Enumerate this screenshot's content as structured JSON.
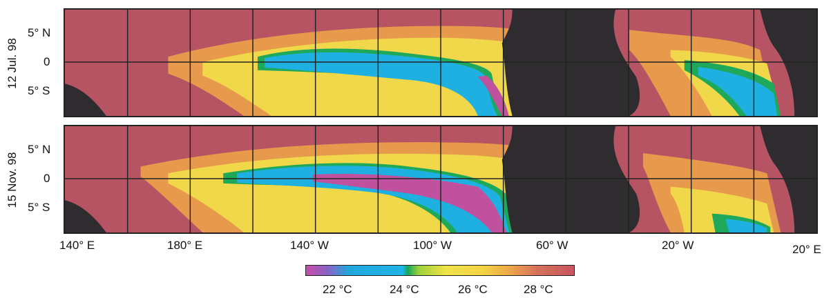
{
  "panels": [
    {
      "date_line1": "12 Jul. 98"
    },
    {
      "date_line1": "15 Nov. 98"
    }
  ],
  "lat_labels": {
    "north": "5° N",
    "equator": "0",
    "south": "5° S"
  },
  "lon_labels": [
    "140° E",
    "180° E",
    "140° W",
    "100° W",
    "60° W",
    "20° W",
    "20° E"
  ],
  "colorbar": {
    "labels": [
      "22 °C",
      "24 °C",
      "26 °C",
      "28 °C"
    ],
    "colors": [
      "#c54fa4",
      "#1fa8dc",
      "#16a85a",
      "#eee348",
      "#eda74a",
      "#c85460"
    ]
  },
  "colors": {
    "land": "#2e2c2e",
    "warm": "#b65464",
    "mid": "#e79a4c",
    "yellow": "#f0d84a",
    "cool": "#1fb0e2",
    "cold": "#c0519f",
    "green": "#1ea85a"
  }
}
